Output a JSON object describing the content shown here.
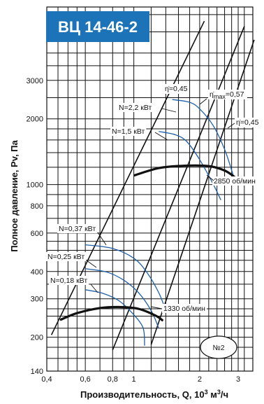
{
  "chart_data": {
    "type": "line",
    "title": "ВЦ 14-46-2",
    "xlabel": "Производительность, Q, 10³ м³/ч",
    "ylabel": "Полное давление, Pv, Па",
    "x_scale": "log",
    "y_scale": "log",
    "xlim": [
      0.4,
      3.5
    ],
    "ylim": [
      140,
      6500
    ],
    "grid": true,
    "x_ticks": [
      "0,4",
      "0,6",
      "0,8",
      "1",
      "2",
      "3"
    ],
    "y_ticks": [
      "140",
      "200",
      "300",
      "400",
      "600",
      "800",
      "1000",
      "2000",
      "3000"
    ],
    "speed_curves": [
      {
        "label": "2850 об/мин",
        "x": [
          1.0,
          1.3,
          1.7,
          2.2,
          2.6,
          2.9
        ],
        "y": [
          1100,
          1190,
          1220,
          1215,
          1160,
          1080
        ]
      },
      {
        "label": "1330 об/мин",
        "x": [
          0.46,
          0.55,
          0.7,
          0.85,
          1.05,
          1.25,
          1.36
        ],
        "y": [
          240,
          258,
          272,
          275,
          270,
          252,
          238
        ]
      }
    ],
    "power_curves": [
      {
        "label": "N=2,2 кВт",
        "x": [
          1.5,
          1.8,
          2.0,
          2.3,
          2.6,
          2.85
        ],
        "y": [
          2450,
          2380,
          2220,
          1870,
          1450,
          1100
        ]
      },
      {
        "label": "N=1,5 кВт",
        "x": [
          1.3,
          1.55,
          1.75,
          2.0,
          2.3,
          2.5
        ],
        "y": [
          1750,
          1690,
          1570,
          1300,
          1010,
          850
        ]
      },
      {
        "label": "N=0,37 кВт",
        "x": [
          0.6,
          0.8,
          1.0,
          1.15,
          1.3,
          1.4
        ],
        "y": [
          530,
          510,
          460,
          395,
          320,
          265
        ]
      },
      {
        "label": "N=0,25 кВт",
        "x": [
          0.6,
          0.75,
          0.9,
          1.05,
          1.2,
          1.3
        ],
        "y": [
          412,
          398,
          365,
          320,
          265,
          220
        ]
      },
      {
        "label": "N=0,18 кВт",
        "x": [
          0.6,
          0.72,
          0.85,
          0.97,
          1.1,
          1.12
        ],
        "y": [
          330,
          318,
          295,
          262,
          222,
          183
        ]
      }
    ],
    "efficiency_lines": [
      {
        "label": "η̇=0,45",
        "x": [
          0.42,
          2.1
        ],
        "y": [
          205,
          5600
        ]
      },
      {
        "label": "η̇ₘₐₓ=0,57",
        "x": [
          0.8,
          3.2
        ],
        "y": [
          175,
          5300
        ]
      },
      {
        "label": "η̇=0,45",
        "x": [
          1.2,
          3.55
        ],
        "y": [
          185,
          4600
        ]
      }
    ],
    "annotations": [
      "N=2,2 кВт",
      "N=1,5 кВт",
      "N=0,37 кВт",
      "N=0,25 кВт",
      "N=0,18 кВт",
      "2850 об/мин",
      "1330 об/мин",
      "η̇=0,45",
      "η̇max=0,57",
      "η̇=0,45"
    ],
    "badge": "№2"
  }
}
